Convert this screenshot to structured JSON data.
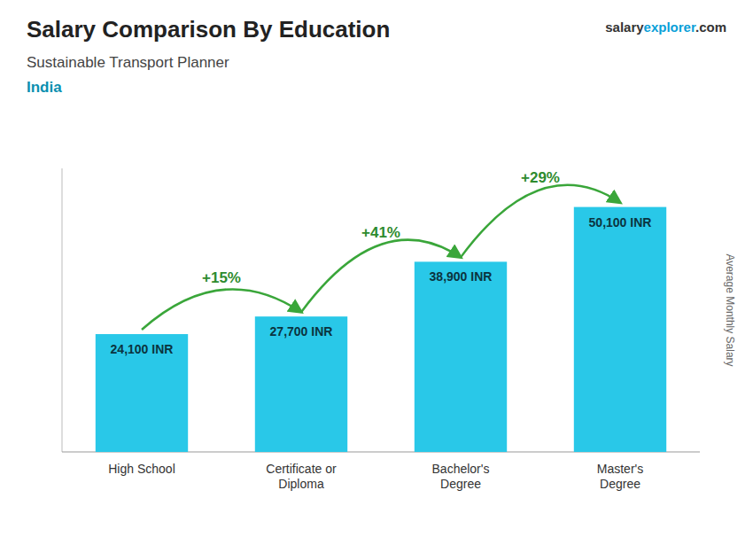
{
  "chart_data": {
    "type": "bar",
    "title": "Salary Comparison By Education",
    "subtitle": "Sustainable Transport Planner",
    "country_label": "India",
    "brand": [
      "salary",
      "explorer",
      ".com"
    ],
    "categories": [
      "High School",
      "Certificate or\nDiploma",
      "Bachelor's\nDegree",
      "Master's\nDegree"
    ],
    "values": [
      24100,
      27700,
      38900,
      50100
    ],
    "value_labels": [
      "24,100 INR",
      "27,700 INR",
      "38,900 INR",
      "50,100 INR"
    ],
    "data_labels": true,
    "annotations": [
      "+15%",
      "+41%",
      "+29%"
    ],
    "ylabel": "Average Monthly Salary",
    "color": "#29c8e8",
    "ylim": [
      0,
      58000
    ],
    "tick_labels": "x",
    "grid": false
  }
}
